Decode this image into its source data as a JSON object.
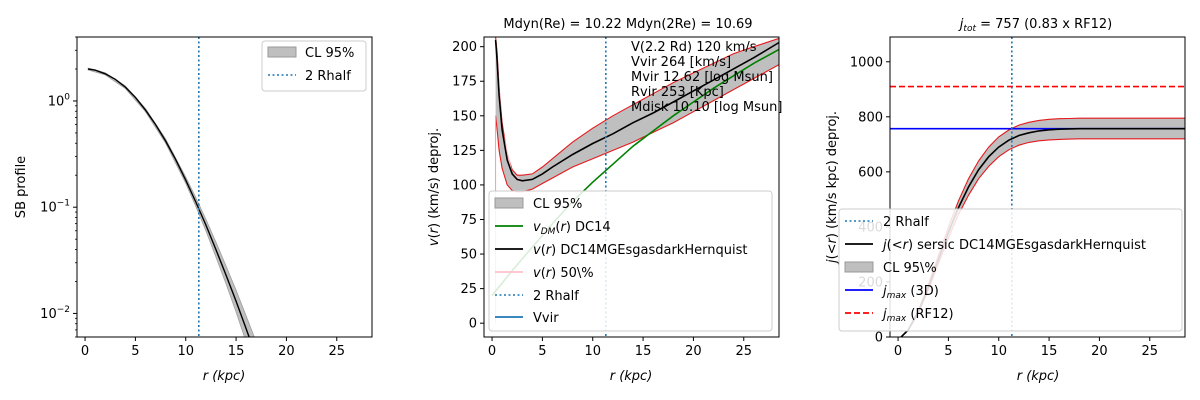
{
  "chart_data": [
    {
      "type": "line",
      "title": "",
      "xlabel": "r (kpc)",
      "ylabel": "SB profile",
      "xlim": [
        -0.8,
        28.5
      ],
      "ylim": [
        0.006,
        4
      ],
      "yscale": "log",
      "xticks": [
        0,
        5,
        10,
        15,
        20,
        25
      ],
      "xtick_labels": [
        "0",
        "5",
        "10",
        "15",
        "20",
        "25"
      ],
      "yticks": [
        1,
        0.1,
        0.01
      ],
      "ytick_labels": [
        "10^0",
        "10^-1",
        "10^-2"
      ],
      "vline_x": 11.3,
      "series": [
        {
          "name": "SB profile",
          "color": "#000000",
          "x": [
            0.3,
            1,
            2,
            3,
            4,
            5,
            6,
            7,
            8,
            9,
            10,
            11,
            12,
            13,
            14,
            15,
            16,
            17
          ],
          "y": [
            2.0,
            1.95,
            1.8,
            1.6,
            1.35,
            1.08,
            0.82,
            0.6,
            0.42,
            0.28,
            0.18,
            0.112,
            0.068,
            0.04,
            0.023,
            0.013,
            0.0072,
            0.0039
          ]
        },
        {
          "name": "CL 95% lower",
          "x": [
            0.3,
            2,
            4,
            6,
            8,
            10,
            11,
            12,
            13,
            14,
            15,
            16,
            17
          ],
          "y": [
            1.96,
            1.76,
            1.31,
            0.79,
            0.4,
            0.168,
            0.102,
            0.06,
            0.034,
            0.019,
            0.0103,
            0.0054,
            0.0028
          ]
        },
        {
          "name": "CL 95% upper",
          "x": [
            0.3,
            2,
            4,
            6,
            8,
            10,
            11,
            12,
            13,
            14,
            15,
            16,
            17
          ],
          "y": [
            2.04,
            1.84,
            1.39,
            0.85,
            0.44,
            0.193,
            0.123,
            0.077,
            0.047,
            0.028,
            0.0165,
            0.0095,
            0.0054
          ]
        }
      ],
      "legend": {
        "position": "top-right",
        "entries": [
          {
            "label": "CL 95%",
            "style": "fill"
          },
          {
            "label": "2 Rhalf",
            "style": "dotted"
          }
        ]
      }
    },
    {
      "type": "line",
      "title": "Mdyn(Re) = 10.22  Mdyn(2Re) = 10.69",
      "xlabel": "r (kpc)",
      "ylabel": "v(r) (km/s) deproj.",
      "xlim": [
        -0.8,
        28.5
      ],
      "ylim": [
        -10,
        207
      ],
      "xticks": [
        0,
        5,
        10,
        15,
        20,
        25
      ],
      "xtick_labels": [
        "0",
        "5",
        "10",
        "15",
        "20",
        "25"
      ],
      "yticks": [
        0,
        25,
        50,
        75,
        100,
        125,
        150,
        175,
        200
      ],
      "ytick_labels": [
        "0",
        "25",
        "50",
        "75",
        "100",
        "125",
        "150",
        "175",
        "200"
      ],
      "vline_x": 11.3,
      "annotation": [
        "V(2.2 Rd) 120 km/s",
        "Vvir 264 [km/s]",
        "Mvir 12.62 [log Msun]",
        "Rvir 253 [Kpc]",
        "Mdisk 10.10 [log Msun]"
      ],
      "series": [
        {
          "name": "v(r) DC14MGEsgasdarkHernquist",
          "color": "#000000",
          "x": [
            0.35,
            0.5,
            0.7,
            1.0,
            1.5,
            2.0,
            2.5,
            3.0,
            4.0,
            5.0,
            6.0,
            8.0,
            10.0,
            12.0,
            14.0,
            16.0,
            18.0,
            20.0,
            22.0,
            24.0,
            26.0,
            28.5
          ],
          "y": [
            205,
            190,
            165,
            140,
            118,
            108,
            104,
            103,
            104,
            108,
            113,
            122,
            130,
            137,
            145,
            152,
            160,
            168,
            176,
            184,
            192,
            203
          ]
        },
        {
          "name": "CL 95% lower",
          "x": [
            0.35,
            0.5,
            0.7,
            1.0,
            1.5,
            2.0,
            2.5,
            3.0,
            4.0,
            5.0,
            6.0,
            8.0,
            10.0,
            12.0,
            14.0,
            16.0,
            18.0,
            20.0,
            22.0,
            24.0,
            26.0,
            28.5
          ],
          "y": [
            150,
            140,
            125,
            112,
            100,
            96,
            95,
            95,
            97,
            101,
            105,
            113,
            119,
            125,
            131,
            138,
            145,
            153,
            161,
            169,
            177,
            187
          ]
        },
        {
          "name": "CL 95% upper",
          "x": [
            0.35,
            0.5,
            0.7,
            1.0,
            1.5,
            2.0,
            2.5,
            3.0,
            4.0,
            5.0,
            6.0,
            8.0,
            10.0,
            12.0,
            14.0,
            16.0,
            18.0,
            20.0,
            22.0,
            24.0,
            26.0,
            28.5
          ],
          "y": [
            207,
            196,
            170,
            145,
            122,
            111,
            107,
            107,
            108,
            113,
            119,
            131,
            141,
            150,
            158,
            166,
            174,
            181,
            188,
            195,
            200,
            206
          ]
        },
        {
          "name": "v_DM(r) DC14",
          "color": "#008000",
          "x": [
            0,
            2,
            4,
            6,
            8,
            10,
            12,
            14,
            16,
            18,
            20,
            22,
            24,
            26,
            28.5
          ],
          "y": [
            20,
            38,
            55,
            72,
            88,
            102,
            115,
            128,
            139,
            150,
            160,
            170,
            179,
            188,
            198
          ]
        },
        {
          "name": "v(r) 50%",
          "color": "#ffc0cb",
          "x": [
            0.35,
            1,
            2,
            3,
            4,
            5,
            6,
            8,
            10,
            12,
            14,
            16,
            18,
            20,
            22,
            24,
            26,
            28.5
          ],
          "y": [
            205,
            140,
            108,
            103,
            104,
            108,
            113,
            122,
            130,
            137,
            145,
            152,
            160,
            168,
            176,
            184,
            192,
            203
          ]
        }
      ],
      "legend": {
        "position": "bottom-right",
        "entries": [
          {
            "label": "CL 95%",
            "style": "fill"
          },
          {
            "label": "v_DM(r) DC14",
            "style": "green"
          },
          {
            "label": "v(r) DC14MGEsgasdarkHernquist",
            "style": "black"
          },
          {
            "label": "v(r) 50\\%",
            "style": "pink"
          },
          {
            "label": "2 Rhalf",
            "style": "dotted"
          },
          {
            "label": "Vvir",
            "style": "blue"
          }
        ]
      }
    },
    {
      "type": "line",
      "title": "j_tot = 757 (0.83 x RF12)",
      "xlabel": "r (kpc)",
      "ylabel": "j(<r) (km/s kpc) deproj.",
      "xlim": [
        -0.8,
        28.5
      ],
      "ylim": [
        0,
        1090
      ],
      "xticks": [
        0,
        5,
        10,
        15,
        20,
        25
      ],
      "xtick_labels": [
        "0",
        "5",
        "10",
        "15",
        "20",
        "25"
      ],
      "yticks": [
        0,
        200,
        400,
        600,
        800,
        1000
      ],
      "ytick_labels": [
        "0",
        "200",
        "400",
        "600",
        "800",
        "1000"
      ],
      "vline_x": 11.3,
      "hline_jmax3d": 757,
      "hline_rf12": 910,
      "series": [
        {
          "name": "j(<r) sersic DC14MGEsgasdarkHernquist",
          "color": "#000000",
          "x": [
            0.3,
            1,
            2,
            3,
            4,
            5,
            6,
            7,
            8,
            9,
            10,
            11,
            12,
            13,
            14,
            15,
            16,
            17,
            18,
            20,
            22,
            25,
            28.5
          ],
          "y": [
            0,
            25,
            90,
            180,
            280,
            380,
            470,
            545,
            608,
            655,
            690,
            715,
            732,
            742,
            749,
            753,
            755,
            756,
            757,
            757,
            757,
            757,
            757
          ]
        },
        {
          "name": "CL 95% lower",
          "x": [
            0.3,
            1,
            2,
            3,
            4,
            5,
            6,
            7,
            8,
            9,
            10,
            11,
            12,
            13,
            14,
            15,
            16,
            17,
            18,
            20,
            22,
            25,
            28.5
          ],
          "y": [
            0,
            24,
            85,
            170,
            265,
            360,
            445,
            515,
            575,
            620,
            655,
            680,
            697,
            707,
            713,
            716,
            718,
            719,
            720,
            720,
            720,
            720,
            720
          ]
        },
        {
          "name": "CL 95% upper",
          "x": [
            0.3,
            1,
            2,
            3,
            4,
            5,
            6,
            7,
            8,
            9,
            10,
            11,
            12,
            13,
            14,
            15,
            16,
            17,
            18,
            20,
            22,
            25,
            28.5
          ],
          "y": [
            0,
            27,
            96,
            190,
            295,
            400,
            495,
            575,
            640,
            690,
            727,
            752,
            770,
            780,
            787,
            791,
            793,
            794,
            795,
            795,
            795,
            795,
            795
          ]
        }
      ],
      "legend": {
        "position": "bottom-right",
        "entries": [
          {
            "label": "2 Rhalf",
            "style": "dotted"
          },
          {
            "label": "j(<r) sersic DC14MGEsgasdarkHernquist",
            "style": "black"
          },
          {
            "label": "CL 95\\%",
            "style": "fill"
          },
          {
            "label": "j_max (3D)",
            "style": "blue"
          },
          {
            "label": "j_max (RF12)",
            "style": "reddash"
          }
        ]
      }
    }
  ]
}
